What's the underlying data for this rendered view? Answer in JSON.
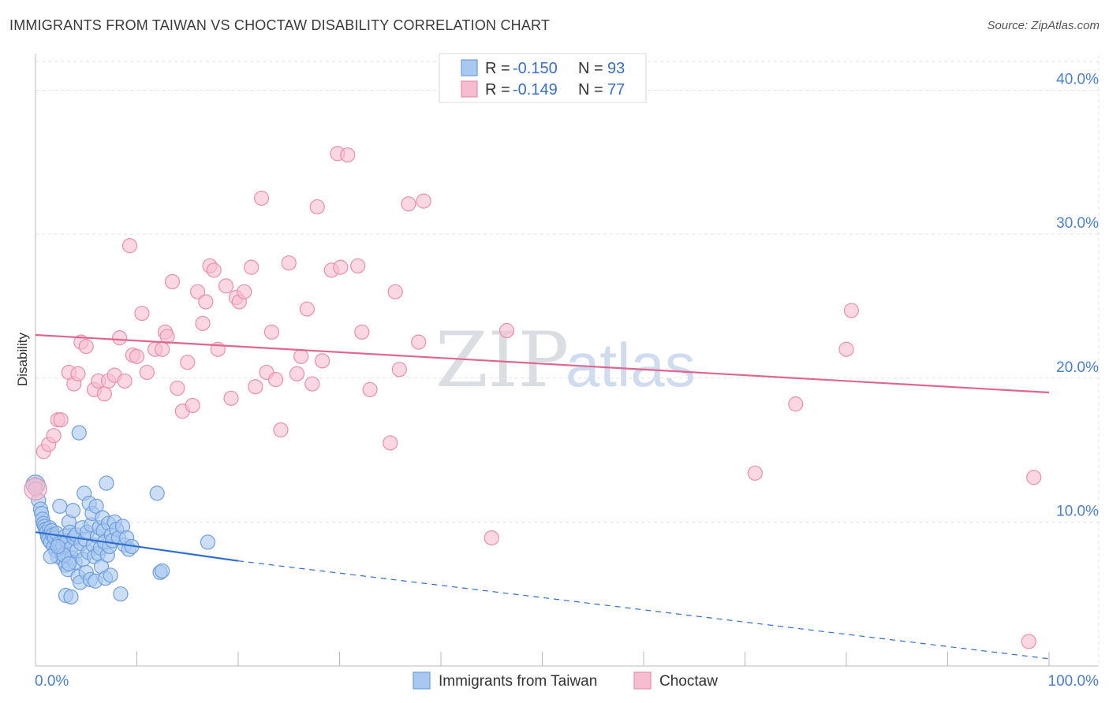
{
  "header": {
    "title": "IMMIGRANTS FROM TAIWAN VS CHOCTAW DISABILITY CORRELATION CHART",
    "source": "Source: ZipAtlas.com"
  },
  "watermark": {
    "zip": "ZIP",
    "atlas": "atlas"
  },
  "colors": {
    "blue_fill": "#a9c8f0",
    "blue_stroke": "#6f9edc",
    "blue_line": "#2f6fcf",
    "pink_fill": "#f6bcd0",
    "pink_stroke": "#ea8fb0",
    "pink_line": "#e06690",
    "grid": "#dde3ec",
    "axis_text": "#4a7fd0"
  },
  "legend": {
    "r_label": "R =",
    "n_label": "N =",
    "rows": [
      {
        "series": "taiwan",
        "r": "-0.150",
        "n": "93"
      },
      {
        "series": "choctaw",
        "r": "-0.149",
        "n": "77"
      }
    ]
  },
  "bottom_legend": [
    "Immigrants from Taiwan",
    "Choctaw"
  ],
  "chart_data": {
    "type": "scatter",
    "title": "IMMIGRANTS FROM TAIWAN VS CHOCTAW DISABILITY CORRELATION CHART",
    "xlabel": "",
    "ylabel": "Disability",
    "xlim": [
      0,
      100
    ],
    "ylim": [
      0,
      42
    ],
    "y_ticks": [
      10,
      20,
      30,
      40
    ],
    "y_tick_labels": [
      "10.0%",
      "20.0%",
      "30.0%",
      "40.0%"
    ],
    "x_tick_labels": [
      "0.0%",
      "100.0%"
    ],
    "grid": true,
    "series": [
      {
        "name": "Immigrants from Taiwan",
        "R": -0.15,
        "N": 93,
        "trend": {
          "x0": 0,
          "y0": 9.3,
          "x1": 20,
          "y1": 7.3,
          "dashed_to": {
            "x": 100,
            "y": 0.5
          }
        },
        "points": [
          [
            0,
            12.6
          ],
          [
            0.3,
            11.5
          ],
          [
            0.5,
            10.9
          ],
          [
            0.6,
            10.6
          ],
          [
            0.7,
            10.2
          ],
          [
            0.8,
            9.9
          ],
          [
            0.9,
            9.7
          ],
          [
            1.0,
            9.5
          ],
          [
            1.1,
            9.3
          ],
          [
            1.2,
            9.0
          ],
          [
            1.3,
            8.8
          ],
          [
            1.4,
            9.6
          ],
          [
            1.5,
            8.6
          ],
          [
            1.6,
            9.4
          ],
          [
            1.7,
            9.1
          ],
          [
            1.8,
            8.3
          ],
          [
            1.9,
            8.9
          ],
          [
            2.0,
            8.0
          ],
          [
            2.1,
            9.2
          ],
          [
            2.2,
            7.6
          ],
          [
            2.3,
            8.5
          ],
          [
            2.4,
            11.1
          ],
          [
            2.5,
            8.1
          ],
          [
            2.6,
            7.8
          ],
          [
            2.7,
            8.4
          ],
          [
            2.8,
            7.3
          ],
          [
            2.9,
            9.0
          ],
          [
            3.0,
            7.0
          ],
          [
            3.1,
            8.7
          ],
          [
            3.2,
            6.7
          ],
          [
            3.3,
            10.0
          ],
          [
            3.4,
            9.3
          ],
          [
            3.5,
            8.2
          ],
          [
            3.6,
            7.5
          ],
          [
            3.7,
            10.8
          ],
          [
            3.8,
            8.9
          ],
          [
            3.9,
            7.2
          ],
          [
            4.0,
            9.1
          ],
          [
            4.1,
            8.0
          ],
          [
            4.2,
            6.2
          ],
          [
            4.3,
            16.2
          ],
          [
            4.4,
            5.8
          ],
          [
            4.5,
            8.5
          ],
          [
            4.6,
            9.6
          ],
          [
            4.7,
            7.4
          ],
          [
            4.8,
            12.0
          ],
          [
            4.9,
            8.8
          ],
          [
            5.0,
            6.5
          ],
          [
            5.1,
            9.3
          ],
          [
            5.2,
            7.9
          ],
          [
            5.3,
            11.3
          ],
          [
            5.4,
            6.0
          ],
          [
            5.5,
            9.8
          ],
          [
            5.6,
            10.6
          ],
          [
            5.7,
            8.4
          ],
          [
            5.8,
            7.6
          ],
          [
            5.9,
            5.9
          ],
          [
            6.0,
            11.1
          ],
          [
            6.1,
            9.0
          ],
          [
            6.2,
            7.8
          ],
          [
            6.3,
            9.6
          ],
          [
            6.4,
            8.2
          ],
          [
            6.5,
            6.9
          ],
          [
            6.6,
            10.3
          ],
          [
            6.7,
            9.4
          ],
          [
            6.8,
            8.6
          ],
          [
            6.9,
            6.1
          ],
          [
            7.0,
            12.7
          ],
          [
            7.1,
            7.7
          ],
          [
            7.2,
            9.9
          ],
          [
            7.3,
            8.3
          ],
          [
            7.4,
            6.3
          ],
          [
            7.5,
            9.1
          ],
          [
            7.6,
            8.7
          ],
          [
            7.8,
            10.0
          ],
          [
            8.0,
            9.5
          ],
          [
            8.2,
            8.9
          ],
          [
            8.4,
            5.0
          ],
          [
            8.6,
            9.7
          ],
          [
            8.8,
            8.4
          ],
          [
            9.0,
            8.9
          ],
          [
            9.2,
            8.1
          ],
          [
            9.5,
            8.3
          ],
          [
            12.0,
            12.0
          ],
          [
            12.3,
            6.5
          ],
          [
            12.5,
            6.6
          ],
          [
            17.0,
            8.6
          ],
          [
            3.0,
            4.9
          ],
          [
            3.5,
            4.8
          ],
          [
            1.5,
            7.6
          ],
          [
            2.8,
            7.7
          ],
          [
            3.3,
            7.1
          ],
          [
            2.2,
            8.3
          ]
        ]
      },
      {
        "name": "Choctaw",
        "R": -0.149,
        "N": 77,
        "trend": {
          "x0": 0,
          "y0": 23.0,
          "x1": 100,
          "y1": 19.0
        },
        "points": [
          [
            0,
            12.3
          ],
          [
            0.8,
            14.9
          ],
          [
            1.3,
            15.4
          ],
          [
            1.8,
            16.0
          ],
          [
            2.2,
            17.1
          ],
          [
            2.5,
            17.1
          ],
          [
            3.3,
            20.4
          ],
          [
            3.8,
            19.6
          ],
          [
            4.2,
            20.3
          ],
          [
            4.5,
            22.5
          ],
          [
            5.0,
            22.2
          ],
          [
            5.8,
            19.2
          ],
          [
            6.2,
            19.8
          ],
          [
            6.8,
            18.9
          ],
          [
            7.2,
            19.8
          ],
          [
            7.8,
            20.2
          ],
          [
            8.3,
            22.8
          ],
          [
            8.8,
            19.8
          ],
          [
            9.3,
            29.2
          ],
          [
            9.6,
            21.6
          ],
          [
            10.0,
            21.5
          ],
          [
            10.5,
            24.5
          ],
          [
            11.0,
            20.4
          ],
          [
            11.8,
            22.0
          ],
          [
            12.5,
            22.0
          ],
          [
            12.8,
            23.2
          ],
          [
            13.0,
            22.9
          ],
          [
            13.5,
            26.7
          ],
          [
            14.0,
            19.3
          ],
          [
            14.5,
            17.7
          ],
          [
            15.0,
            21.1
          ],
          [
            15.5,
            18.1
          ],
          [
            16.0,
            26.0
          ],
          [
            16.5,
            23.8
          ],
          [
            16.8,
            25.3
          ],
          [
            17.2,
            27.8
          ],
          [
            17.6,
            27.5
          ],
          [
            18.0,
            22.0
          ],
          [
            18.8,
            26.4
          ],
          [
            19.3,
            18.6
          ],
          [
            19.8,
            25.6
          ],
          [
            20.1,
            25.3
          ],
          [
            20.6,
            26.0
          ],
          [
            21.3,
            27.7
          ],
          [
            21.7,
            19.4
          ],
          [
            22.3,
            32.5
          ],
          [
            22.8,
            20.4
          ],
          [
            23.3,
            23.2
          ],
          [
            23.7,
            19.9
          ],
          [
            24.2,
            16.4
          ],
          [
            25.0,
            28.0
          ],
          [
            25.8,
            20.3
          ],
          [
            26.2,
            21.5
          ],
          [
            26.8,
            24.8
          ],
          [
            27.3,
            19.6
          ],
          [
            27.8,
            31.9
          ],
          [
            28.3,
            21.2
          ],
          [
            29.2,
            27.5
          ],
          [
            30.1,
            27.7
          ],
          [
            29.8,
            35.6
          ],
          [
            30.8,
            35.5
          ],
          [
            31.8,
            27.8
          ],
          [
            32.2,
            23.2
          ],
          [
            33.0,
            19.2
          ],
          [
            35.0,
            15.5
          ],
          [
            35.5,
            26.0
          ],
          [
            35.9,
            20.6
          ],
          [
            36.8,
            32.1
          ],
          [
            37.8,
            22.5
          ],
          [
            38.3,
            32.3
          ],
          [
            45.0,
            8.9
          ],
          [
            46.5,
            23.3
          ],
          [
            71.0,
            13.4
          ],
          [
            75.0,
            18.2
          ],
          [
            80.0,
            22.0
          ],
          [
            80.5,
            24.7
          ],
          [
            98.0,
            1.7
          ],
          [
            98.5,
            13.1
          ]
        ]
      }
    ]
  }
}
